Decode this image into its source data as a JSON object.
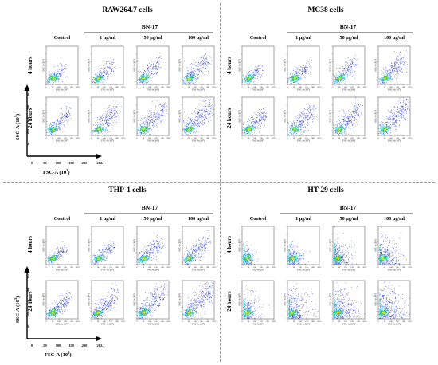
{
  "figure": {
    "panels": [
      {
        "id": "raw",
        "title": "RAW264.7 cells",
        "treatment": "BN-17",
        "columns": [
          "Control",
          "1 μg/ml",
          "50 μg/ml",
          "100 μg/ml"
        ],
        "rows": [
          "4 hours",
          "24 hours"
        ]
      },
      {
        "id": "mc38",
        "title": "MC38 cells",
        "treatment": "BN-17",
        "columns": [
          "Control",
          "1 μg/ml",
          "50 μg/ml",
          "100 μg/ml"
        ],
        "rows": [
          "4 hours",
          "24 hours"
        ]
      },
      {
        "id": "thp1",
        "title": "THP-1 cells",
        "treatment": "BN-17",
        "columns": [
          "Control",
          "1 μg/ml",
          "50 μg/ml",
          "100 μg/ml"
        ],
        "rows": [
          "4 hours",
          "24 hours"
        ]
      },
      {
        "id": "ht29",
        "title": "HT-29 cells",
        "treatment": "BN-17",
        "columns": [
          "Control",
          "1 μg/ml",
          "50 μg/ml",
          "100 μg/ml"
        ],
        "rows": [
          "4 hours",
          "24 hours"
        ]
      }
    ],
    "mini_xlabel": "FSC-A (10³)",
    "mini_ylabel": "SSC-A (10³)",
    "mini_ticks": [
      "0",
      "50",
      "100",
      "150",
      "200",
      "262.1"
    ],
    "key_axis": {
      "xlabel": "FSC-A",
      "xlabel_unit": "10",
      "xlabel_exp": "3",
      "ylabel": "SSC-A",
      "ylabel_unit": "10",
      "ylabel_exp": "3",
      "xticks": [
        "0",
        "50",
        "100",
        "150",
        "200",
        "262.1"
      ],
      "yticks": [
        "50",
        "100",
        "150",
        "200",
        "262.1"
      ]
    },
    "colors": {
      "low": "#1e2fd8",
      "mid": "#22c7d0",
      "high": "#39d33a",
      "peak": "#e8e635",
      "frame": "#8d8d8d",
      "text": "#000000"
    }
  }
}
